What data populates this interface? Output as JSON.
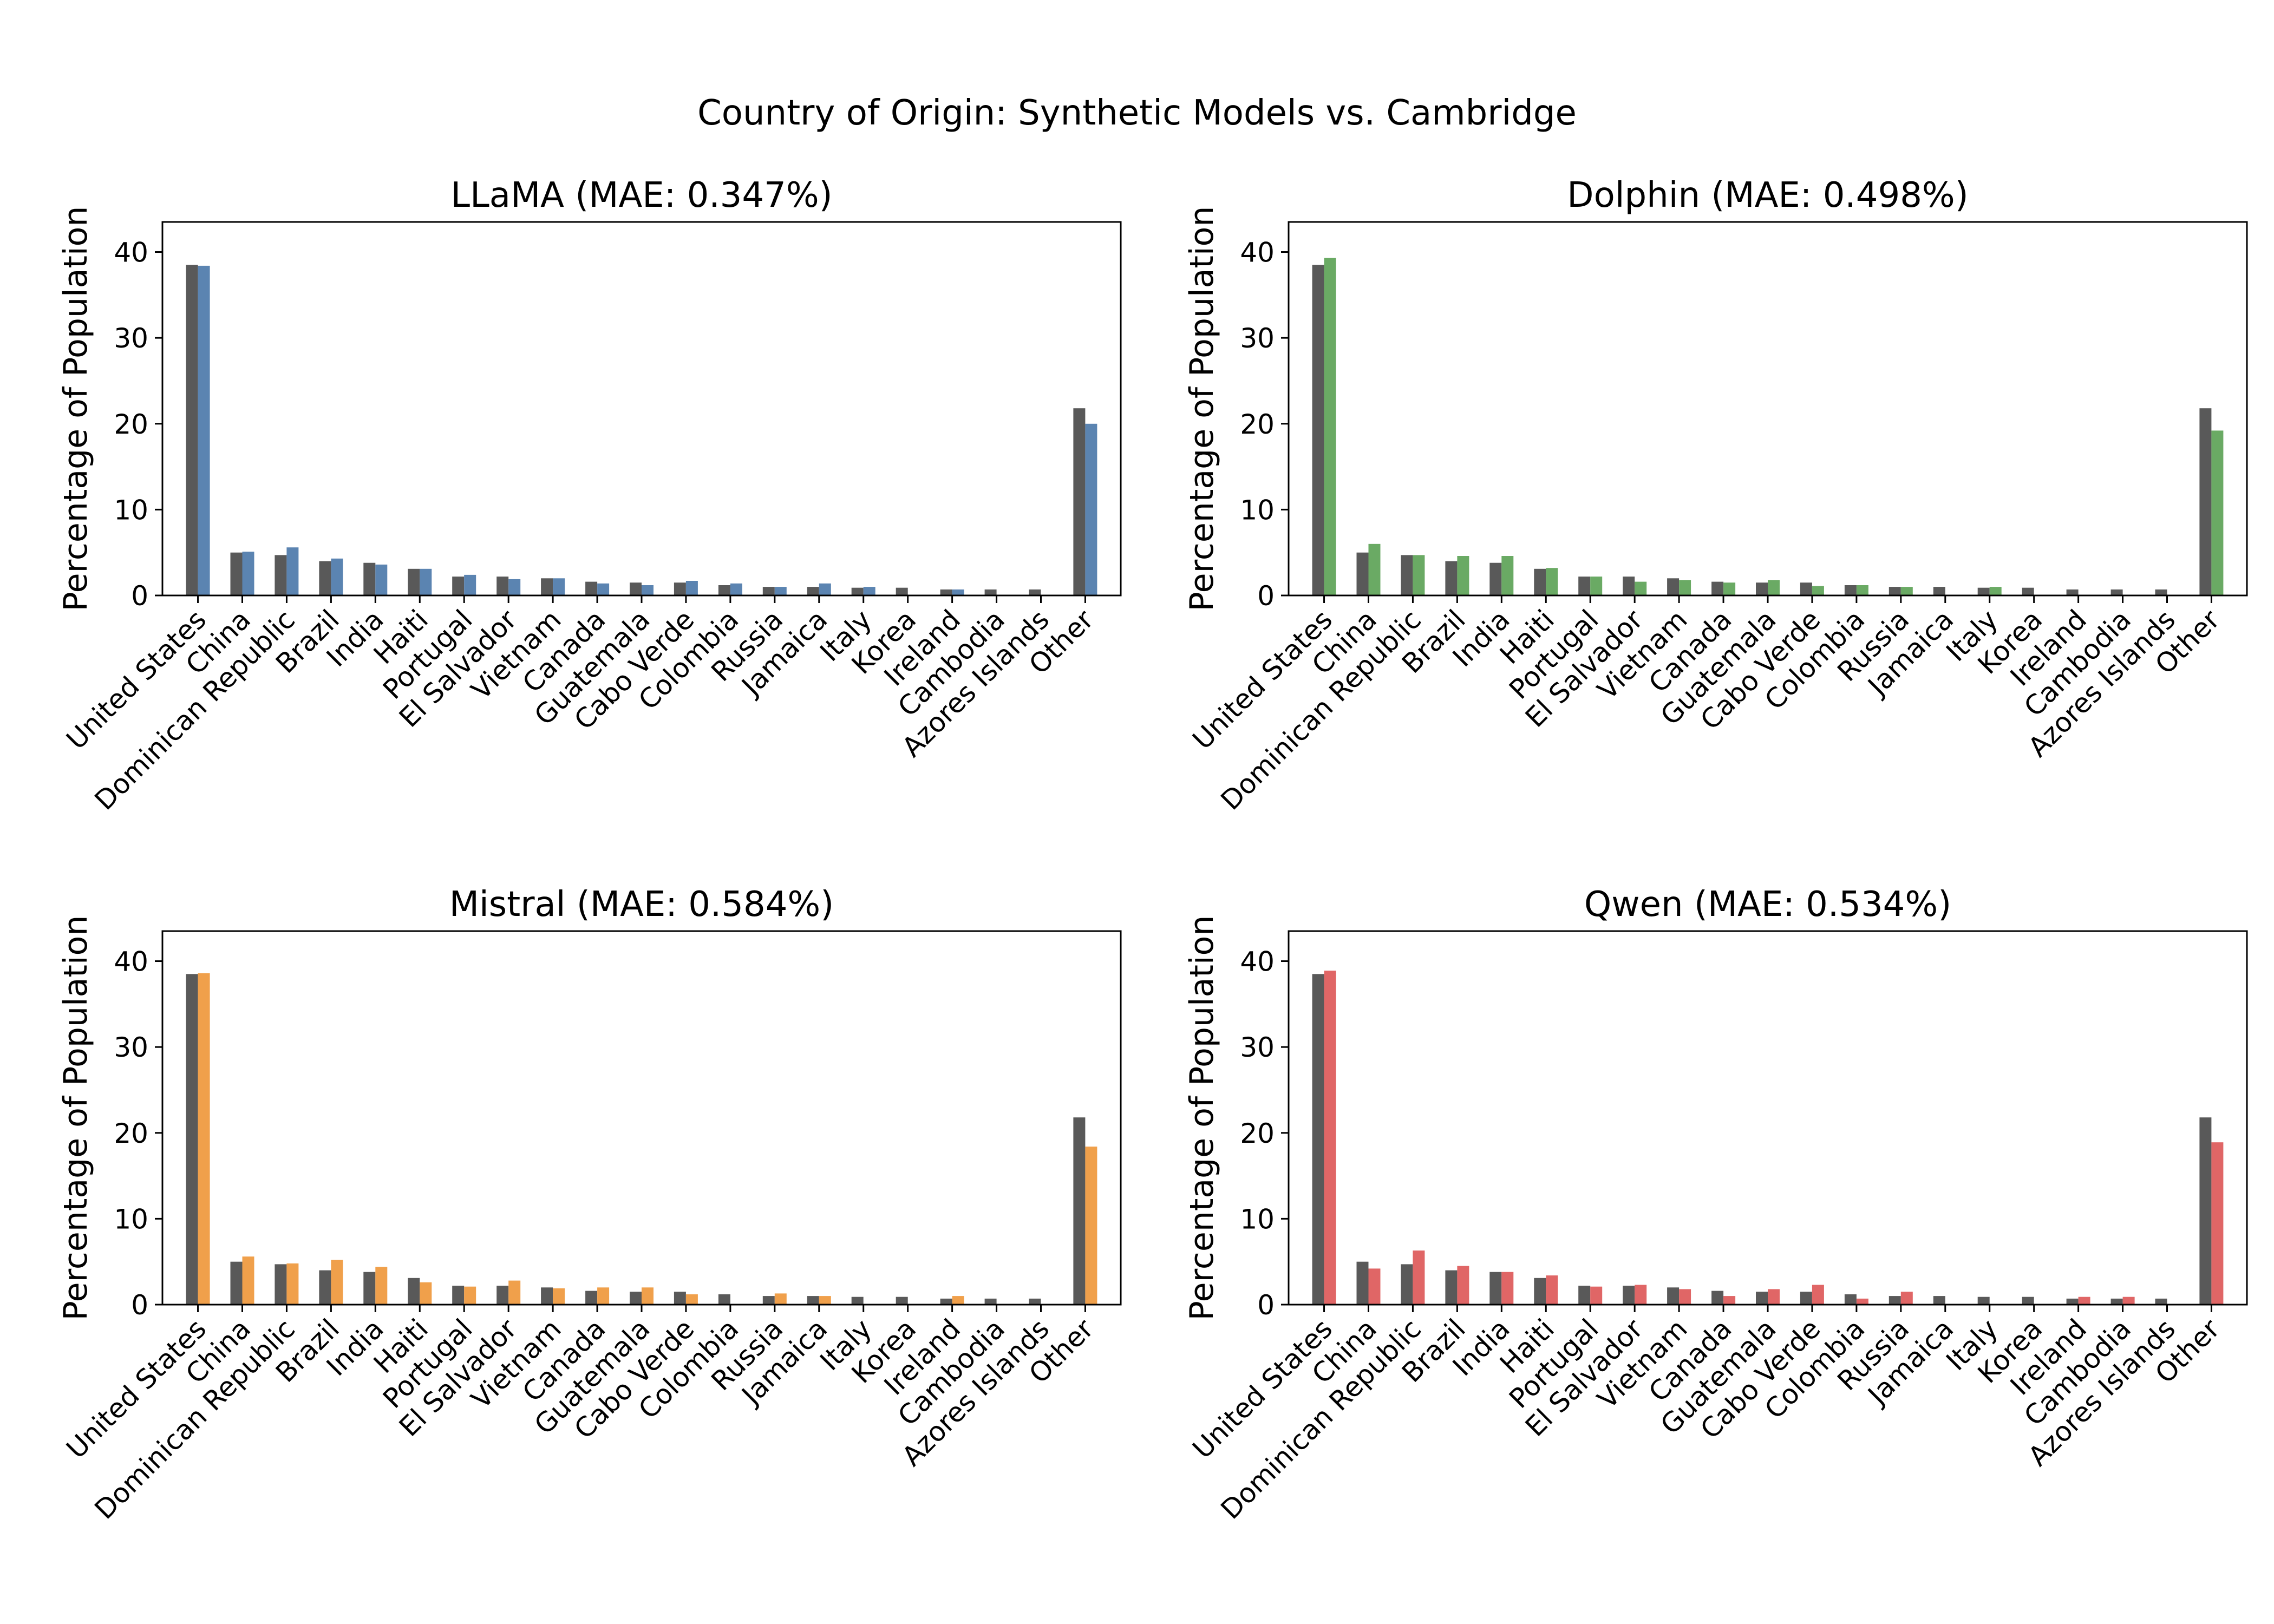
{
  "figure_title": "Country of Origin: Synthetic Models vs. Cambridge",
  "chart_data": [
    {
      "type": "bar",
      "title": "LLaMA (MAE: 0.347%)",
      "xlabel": "",
      "ylabel": "Percentage of Population",
      "ylim": [
        0,
        43.5
      ],
      "yticks": [
        0,
        10,
        20,
        30,
        40
      ],
      "categories": [
        "United States",
        "China",
        "Dominican Republic",
        "Brazil",
        "India",
        "Haiti",
        "Portugal",
        "El Salvador",
        "Vietnam",
        "Canada",
        "Guatemala",
        "Cabo Verde",
        "Colombia",
        "Russia",
        "Jamaica",
        "Italy",
        "Korea",
        "Ireland",
        "Cambodia",
        "Azores Islands",
        "Other"
      ],
      "series": [
        {
          "values": [
            38.5,
            5.0,
            4.7,
            4.0,
            3.8,
            3.1,
            2.2,
            2.2,
            2.0,
            1.6,
            1.5,
            1.5,
            1.2,
            1.0,
            1.0,
            0.9,
            0.9,
            0.7,
            0.7,
            0.7,
            21.8
          ],
          "color": "#595959"
        },
        {
          "values": [
            38.4,
            5.1,
            5.6,
            4.3,
            3.6,
            3.1,
            2.4,
            1.9,
            2.0,
            1.4,
            1.2,
            1.7,
            1.4,
            1.0,
            1.4,
            1.0,
            0.0,
            0.7,
            0.0,
            0.0,
            20.0
          ],
          "color": "#5b84b1"
        }
      ]
    },
    {
      "type": "bar",
      "title": "Dolphin (MAE: 0.498%)",
      "xlabel": "",
      "ylabel": "Percentage of Population",
      "ylim": [
        0,
        43.5
      ],
      "yticks": [
        0,
        10,
        20,
        30,
        40
      ],
      "categories": [
        "United States",
        "China",
        "Dominican Republic",
        "Brazil",
        "India",
        "Haiti",
        "Portugal",
        "El Salvador",
        "Vietnam",
        "Canada",
        "Guatemala",
        "Cabo Verde",
        "Colombia",
        "Russia",
        "Jamaica",
        "Italy",
        "Korea",
        "Ireland",
        "Cambodia",
        "Azores Islands",
        "Other"
      ],
      "series": [
        {
          "values": [
            38.5,
            5.0,
            4.7,
            4.0,
            3.8,
            3.1,
            2.2,
            2.2,
            2.0,
            1.6,
            1.5,
            1.5,
            1.2,
            1.0,
            1.0,
            0.9,
            0.9,
            0.7,
            0.7,
            0.7,
            21.8
          ],
          "color": "#595959"
        },
        {
          "values": [
            39.3,
            6.0,
            4.7,
            4.6,
            4.6,
            3.2,
            2.2,
            1.6,
            1.8,
            1.5,
            1.8,
            1.1,
            1.2,
            1.0,
            0.0,
            1.0,
            0.0,
            0.0,
            0.0,
            0.0,
            19.2
          ],
          "color": "#6aaa64"
        }
      ]
    },
    {
      "type": "bar",
      "title": "Mistral (MAE: 0.584%)",
      "xlabel": "",
      "ylabel": "Percentage of Population",
      "ylim": [
        0,
        43.5
      ],
      "yticks": [
        0,
        10,
        20,
        30,
        40
      ],
      "categories": [
        "United States",
        "China",
        "Dominican Republic",
        "Brazil",
        "India",
        "Haiti",
        "Portugal",
        "El Salvador",
        "Vietnam",
        "Canada",
        "Guatemala",
        "Cabo Verde",
        "Colombia",
        "Russia",
        "Jamaica",
        "Italy",
        "Korea",
        "Ireland",
        "Cambodia",
        "Azores Islands",
        "Other"
      ],
      "series": [
        {
          "values": [
            38.5,
            5.0,
            4.7,
            4.0,
            3.8,
            3.1,
            2.2,
            2.2,
            2.0,
            1.6,
            1.5,
            1.5,
            1.2,
            1.0,
            1.0,
            0.9,
            0.9,
            0.7,
            0.7,
            0.7,
            21.8
          ],
          "color": "#595959"
        },
        {
          "values": [
            38.6,
            5.6,
            4.8,
            5.2,
            4.4,
            2.6,
            2.1,
            2.8,
            1.9,
            2.0,
            2.0,
            1.2,
            0.0,
            1.3,
            1.0,
            0.0,
            0.0,
            1.0,
            0.0,
            0.0,
            18.4
          ],
          "color": "#f0a04b"
        }
      ]
    },
    {
      "type": "bar",
      "title": "Qwen (MAE: 0.534%)",
      "xlabel": "",
      "ylabel": "Percentage of Population",
      "ylim": [
        0,
        43.5
      ],
      "yticks": [
        0,
        10,
        20,
        30,
        40
      ],
      "categories": [
        "United States",
        "China",
        "Dominican Republic",
        "Brazil",
        "India",
        "Haiti",
        "Portugal",
        "El Salvador",
        "Vietnam",
        "Canada",
        "Guatemala",
        "Cabo Verde",
        "Colombia",
        "Russia",
        "Jamaica",
        "Italy",
        "Korea",
        "Ireland",
        "Cambodia",
        "Azores Islands",
        "Other"
      ],
      "series": [
        {
          "values": [
            38.5,
            5.0,
            4.7,
            4.0,
            3.8,
            3.1,
            2.2,
            2.2,
            2.0,
            1.6,
            1.5,
            1.5,
            1.2,
            1.0,
            1.0,
            0.9,
            0.9,
            0.7,
            0.7,
            0.7,
            21.8
          ],
          "color": "#595959"
        },
        {
          "values": [
            38.9,
            4.2,
            6.3,
            4.5,
            3.8,
            3.4,
            2.1,
            2.3,
            1.8,
            1.0,
            1.8,
            2.3,
            0.7,
            1.5,
            0.0,
            0.0,
            0.0,
            0.9,
            0.9,
            0.0,
            18.9
          ],
          "color": "#e06666"
        }
      ]
    }
  ]
}
